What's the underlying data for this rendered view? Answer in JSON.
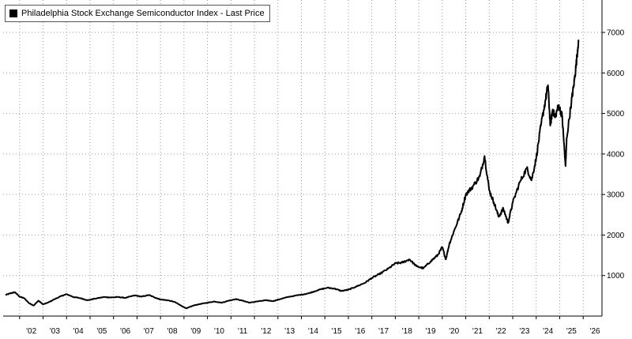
{
  "chart_data": {
    "type": "line",
    "title": "",
    "xlabel": "",
    "ylabel": "",
    "legend": {
      "position": "top-left",
      "entries": [
        "Philadelphia Stock Exchange Semiconductor Index - Last Price"
      ]
    },
    "grid": true,
    "ylim": [
      0,
      7800
    ],
    "xlim": [
      2001.3,
      2026.8
    ],
    "x_tick_labels": [
      "'02",
      "'03",
      "'04",
      "'05",
      "'06",
      "'07",
      "'08",
      "'09",
      "'10",
      "'11",
      "'12",
      "'13",
      "'14",
      "'15",
      "'16",
      "'17",
      "'18",
      "'19",
      "'20",
      "'21",
      "'22",
      "'23",
      "'24",
      "'25",
      "'26"
    ],
    "y_ticks": [
      1000,
      2000,
      3000,
      4000,
      5000,
      6000,
      7000
    ],
    "y_tick_labels": [
      "1000",
      "2000",
      "3000",
      "4000",
      "5000",
      "6000",
      "7000"
    ],
    "series": [
      {
        "name": "Philadelphia Stock Exchange Semiconductor Index - Last Price",
        "color": "#000000",
        "x": [
          2001.4,
          2001.6,
          2001.8,
          2002.0,
          2002.2,
          2002.4,
          2002.6,
          2002.8,
          2003.0,
          2003.2,
          2003.5,
          2003.8,
          2004.0,
          2004.3,
          2004.6,
          2004.9,
          2005.2,
          2005.6,
          2005.9,
          2006.2,
          2006.5,
          2006.9,
          2007.2,
          2007.5,
          2007.8,
          2008.0,
          2008.3,
          2008.6,
          2008.9,
          2009.1,
          2009.4,
          2009.7,
          2010.0,
          2010.3,
          2010.6,
          2010.9,
          2011.2,
          2011.5,
          2011.8,
          2012.1,
          2012.5,
          2012.8,
          2013.1,
          2013.5,
          2013.9,
          2014.3,
          2014.7,
          2015.1,
          2015.4,
          2015.7,
          2016.0,
          2016.3,
          2016.7,
          2017.0,
          2017.3,
          2017.7,
          2018.0,
          2018.3,
          2018.6,
          2018.9,
          2019.2,
          2019.5,
          2019.8,
          2020.0,
          2020.15,
          2020.3,
          2020.5,
          2020.8,
          2021.0,
          2021.3,
          2021.6,
          2021.8,
          2022.0,
          2022.2,
          2022.4,
          2022.6,
          2022.8,
          2023.0,
          2023.3,
          2023.6,
          2023.8,
          2024.0,
          2024.2,
          2024.4,
          2024.5,
          2024.6,
          2024.7,
          2024.8,
          2024.95,
          2025.1,
          2025.2,
          2025.25,
          2025.3,
          2025.5,
          2025.6,
          2025.7,
          2025.8
        ],
        "values": [
          520,
          560,
          590,
          480,
          440,
          320,
          260,
          380,
          290,
          330,
          420,
          500,
          540,
          470,
          440,
          390,
          430,
          470,
          460,
          470,
          450,
          510,
          480,
          520,
          450,
          410,
          390,
          350,
          250,
          190,
          260,
          300,
          330,
          360,
          330,
          380,
          420,
          380,
          330,
          360,
          390,
          370,
          420,
          480,
          520,
          560,
          640,
          700,
          680,
          620,
          650,
          720,
          820,
          940,
          1030,
          1170,
          1300,
          1320,
          1400,
          1230,
          1180,
          1350,
          1500,
          1700,
          1400,
          1780,
          2100,
          2550,
          3000,
          3200,
          3450,
          3950,
          3100,
          2800,
          2450,
          2650,
          2300,
          2800,
          3300,
          3650,
          3350,
          3900,
          4700,
          5350,
          5700,
          4700,
          5100,
          4900,
          5200,
          4950,
          4100,
          3700,
          4400,
          5300,
          5700,
          6200,
          6820
        ]
      }
    ]
  }
}
